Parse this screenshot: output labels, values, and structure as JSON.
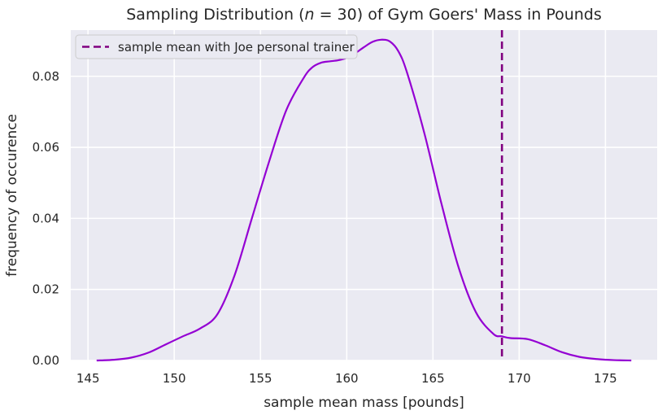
{
  "chart_data": {
    "type": "line",
    "title_prefix": "Sampling Distribution (",
    "title_var": "n",
    "title_eq": " = 30",
    "title_suffix": ") of Gym Goers' Mass in Pounds",
    "xlabel": "sample mean mass [pounds]",
    "ylabel": "frequency of occurence",
    "xlim": [
      144,
      178
    ],
    "ylim": [
      0,
      0.093
    ],
    "xticks": [
      145,
      150,
      155,
      160,
      165,
      170,
      175
    ],
    "yticks": [
      0.0,
      0.02,
      0.04,
      0.06,
      0.08
    ],
    "ytick_labels": [
      "0.00",
      "0.02",
      "0.04",
      "0.06",
      "0.08"
    ],
    "grid": true,
    "legend_position": "top-left",
    "series": [
      {
        "kind": "density",
        "color": "#9400D3",
        "x": [
          145.5,
          146.5,
          147.5,
          148.5,
          149.5,
          150.5,
          151.5,
          152.5,
          153.5,
          154.5,
          155.5,
          156.5,
          157.5,
          158.0,
          158.5,
          159.0,
          159.5,
          160.0,
          160.5,
          161.0,
          161.5,
          162.0,
          162.5,
          163.0,
          163.5,
          164.5,
          165.5,
          166.5,
          167.5,
          168.5,
          169.0,
          169.5,
          170.5,
          171.5,
          172.5,
          173.5,
          174.5,
          175.5,
          176.5
        ],
        "y": [
          0.0,
          0.0002,
          0.0008,
          0.0022,
          0.0045,
          0.0068,
          0.009,
          0.013,
          0.024,
          0.04,
          0.056,
          0.0705,
          0.0795,
          0.0825,
          0.0838,
          0.0842,
          0.0845,
          0.0852,
          0.0865,
          0.0882,
          0.0897,
          0.0903,
          0.0898,
          0.087,
          0.081,
          0.064,
          0.044,
          0.026,
          0.0135,
          0.0075,
          0.0068,
          0.0063,
          0.006,
          0.0043,
          0.0023,
          0.001,
          0.0004,
          0.0001,
          0.0
        ]
      }
    ],
    "vline": {
      "x": 169,
      "color": "#800080",
      "label": "sample mean with Joe personal trainer"
    }
  }
}
